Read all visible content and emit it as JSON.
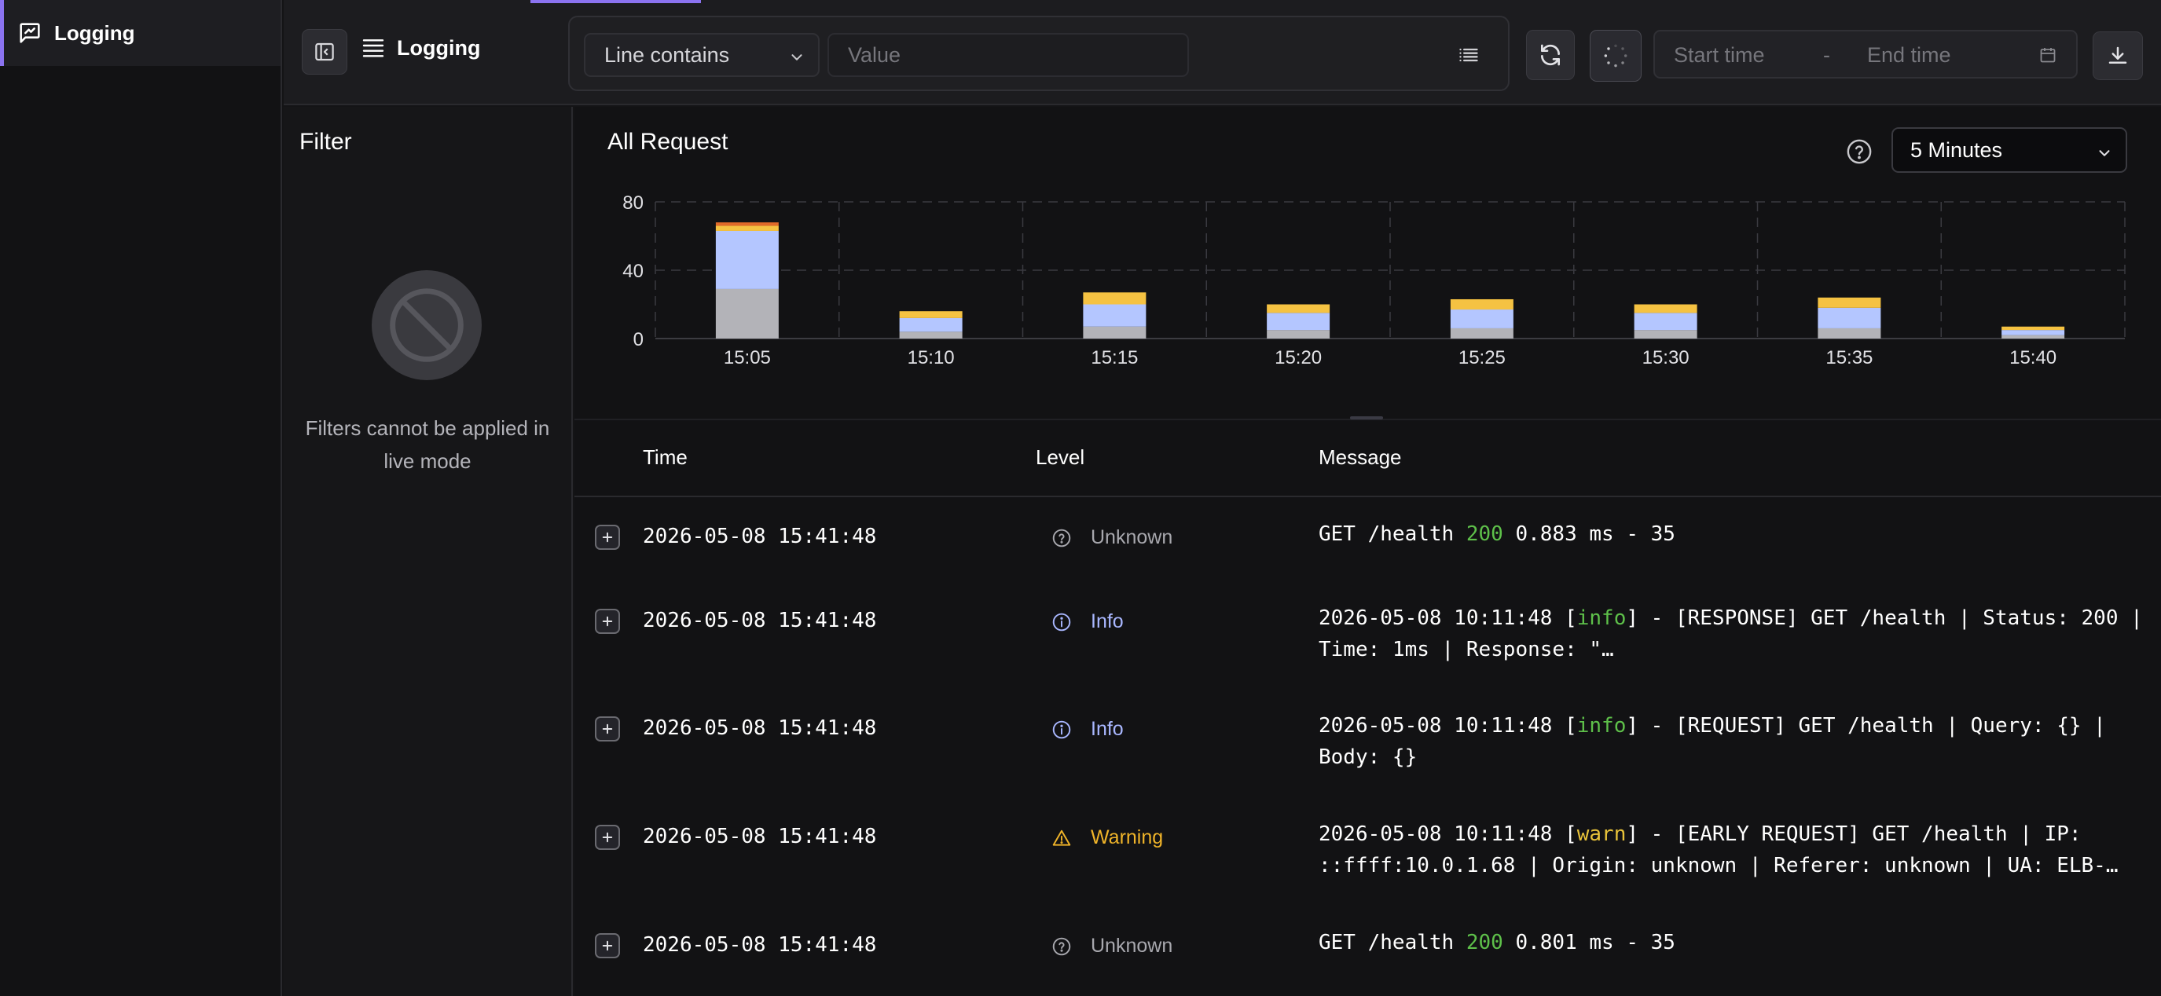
{
  "nav": {
    "active_label": "Logging",
    "icon": "logs-chat-icon"
  },
  "toolbar": {
    "title": "Logging",
    "condition": "Line contains",
    "value_placeholder": "Value",
    "start_placeholder": "Start time",
    "range_separator": "-",
    "end_placeholder": "End time"
  },
  "filter": {
    "title": "Filter",
    "message": "Filters cannot be applied in live mode"
  },
  "chart_header": {
    "title": "All Request",
    "interval": "5 Minutes"
  },
  "chart_data": {
    "type": "bar",
    "stacked": true,
    "title": "All Request",
    "categories": [
      "15:05",
      "15:10",
      "15:15",
      "15:20",
      "15:25",
      "15:30",
      "15:35",
      "15:40"
    ],
    "series": [
      {
        "values": [
          29,
          4,
          7,
          5,
          6,
          5,
          6,
          2
        ],
        "color": "#b3b3b8"
      },
      {
        "values": [
          34,
          8,
          13,
          10,
          11,
          10,
          12,
          3
        ],
        "color": "#b4c6ff"
      },
      {
        "values": [
          3,
          4,
          7,
          5,
          6,
          5,
          6,
          2
        ],
        "color": "#f5c242"
      },
      {
        "values": [
          2,
          0,
          0,
          0,
          0,
          0,
          0,
          0
        ],
        "color": "#e06a2a"
      }
    ],
    "y_ticks": [
      "0",
      "40",
      "80"
    ],
    "ylim": [
      0,
      80
    ],
    "grid": true,
    "legend": "none"
  },
  "table": {
    "headers": {
      "time": "Time",
      "level": "Level",
      "message": "Message"
    },
    "rows": [
      {
        "time": "2026-05-08 15:41:48",
        "level": "Unknown",
        "message": [
          {
            "t": "GET /health "
          },
          {
            "t": "200",
            "c": "green"
          },
          {
            "t": " 0.883 ms - 35"
          }
        ]
      },
      {
        "time": "2026-05-08 15:41:48",
        "level": "Info",
        "message": [
          {
            "t": "2026-05-08 10:11:48 ["
          },
          {
            "t": "info",
            "c": "green"
          },
          {
            "t": "] - [RESPONSE] GET /health | Status: 200 | Time: 1ms | Response: \"…"
          }
        ]
      },
      {
        "time": "2026-05-08 15:41:48",
        "level": "Info",
        "message": [
          {
            "t": "2026-05-08 10:11:48 ["
          },
          {
            "t": "info",
            "c": "green"
          },
          {
            "t": "] - [REQUEST] GET /health | Query: {} | Body: {}"
          }
        ]
      },
      {
        "time": "2026-05-08 15:41:48",
        "level": "Warning",
        "message": [
          {
            "t": "2026-05-08 10:11:48 ["
          },
          {
            "t": "warn",
            "c": "yellow"
          },
          {
            "t": "] - [EARLY REQUEST] GET /health | IP: ::ffff:10.0.1.68 | Origin: unknown | Referer: unknown | UA: ELB-…"
          }
        ]
      },
      {
        "time": "2026-05-08 15:41:48",
        "level": "Unknown",
        "message": [
          {
            "t": "GET /health "
          },
          {
            "t": "200",
            "c": "green"
          },
          {
            "t": " 0.801 ms - 35"
          }
        ]
      }
    ]
  },
  "colors": {
    "accent": "#8b73f0",
    "info": "#a9b7ff",
    "warning": "#f0b429",
    "unknown": "#a8a8ae",
    "status_ok": "#5ec04a"
  }
}
